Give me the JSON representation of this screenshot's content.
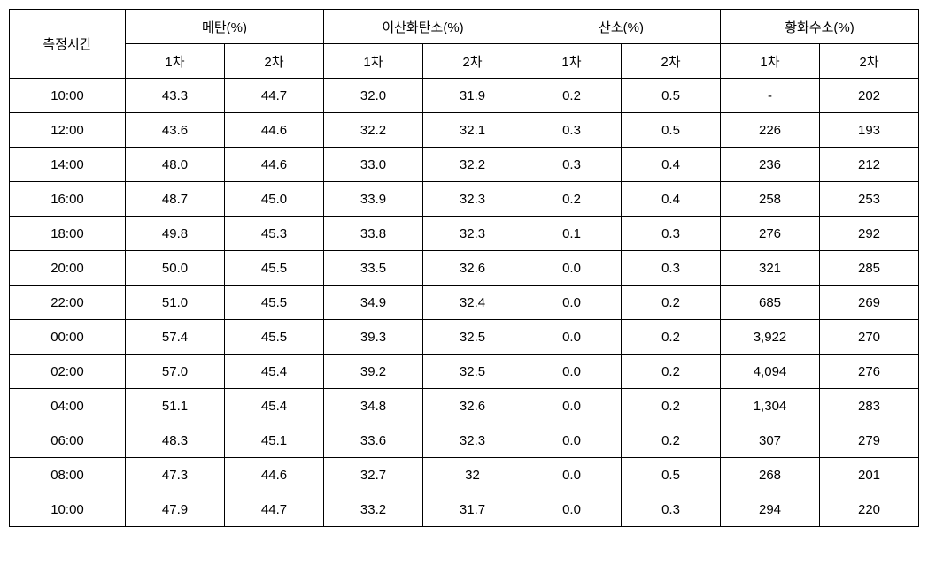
{
  "table": {
    "row_label": "측정시간",
    "groups": [
      {
        "label": "메탄(%)",
        "sub": [
          "1차",
          "2차"
        ]
      },
      {
        "label": "이산화탄소(%)",
        "sub": [
          "1차",
          "2차"
        ]
      },
      {
        "label": "산소(%)",
        "sub": [
          "1차",
          "2차"
        ]
      },
      {
        "label": "황화수소(%)",
        "sub": [
          "1차",
          "2차"
        ]
      }
    ],
    "rows": [
      {
        "time": "10:00",
        "values": [
          "43.3",
          "44.7",
          "32.0",
          "31.9",
          "0.2",
          "0.5",
          "-",
          "202"
        ]
      },
      {
        "time": "12:00",
        "values": [
          "43.6",
          "44.6",
          "32.2",
          "32.1",
          "0.3",
          "0.5",
          "226",
          "193"
        ]
      },
      {
        "time": "14:00",
        "values": [
          "48.0",
          "44.6",
          "33.0",
          "32.2",
          "0.3",
          "0.4",
          "236",
          "212"
        ]
      },
      {
        "time": "16:00",
        "values": [
          "48.7",
          "45.0",
          "33.9",
          "32.3",
          "0.2",
          "0.4",
          "258",
          "253"
        ]
      },
      {
        "time": "18:00",
        "values": [
          "49.8",
          "45.3",
          "33.8",
          "32.3",
          "0.1",
          "0.3",
          "276",
          "292"
        ]
      },
      {
        "time": "20:00",
        "values": [
          "50.0",
          "45.5",
          "33.5",
          "32.6",
          "0.0",
          "0.3",
          "321",
          "285"
        ]
      },
      {
        "time": "22:00",
        "values": [
          "51.0",
          "45.5",
          "34.9",
          "32.4",
          "0.0",
          "0.2",
          "685",
          "269"
        ]
      },
      {
        "time": "00:00",
        "values": [
          "57.4",
          "45.5",
          "39.3",
          "32.5",
          "0.0",
          "0.2",
          "3,922",
          "270"
        ]
      },
      {
        "time": "02:00",
        "values": [
          "57.0",
          "45.4",
          "39.2",
          "32.5",
          "0.0",
          "0.2",
          "4,094",
          "276"
        ]
      },
      {
        "time": "04:00",
        "values": [
          "51.1",
          "45.4",
          "34.8",
          "32.6",
          "0.0",
          "0.2",
          "1,304",
          "283"
        ]
      },
      {
        "time": "06:00",
        "values": [
          "48.3",
          "45.1",
          "33.6",
          "32.3",
          "0.0",
          "0.2",
          "307",
          "279"
        ]
      },
      {
        "time": "08:00",
        "values": [
          "47.3",
          "44.6",
          "32.7",
          "32",
          "0.0",
          "0.5",
          "268",
          "201"
        ]
      },
      {
        "time": "10:00",
        "values": [
          "47.9",
          "44.7",
          "33.2",
          "31.7",
          "0.0",
          "0.3",
          "294",
          "220"
        ]
      }
    ],
    "style": {
      "font_size_header": 15,
      "font_size_cell": 15,
      "border_color": "#000000",
      "background_color": "#ffffff",
      "text_color": "#000000",
      "row_label_width": 130,
      "data_col_width": 112,
      "header_row_height": 38,
      "data_row_height": 38
    }
  }
}
